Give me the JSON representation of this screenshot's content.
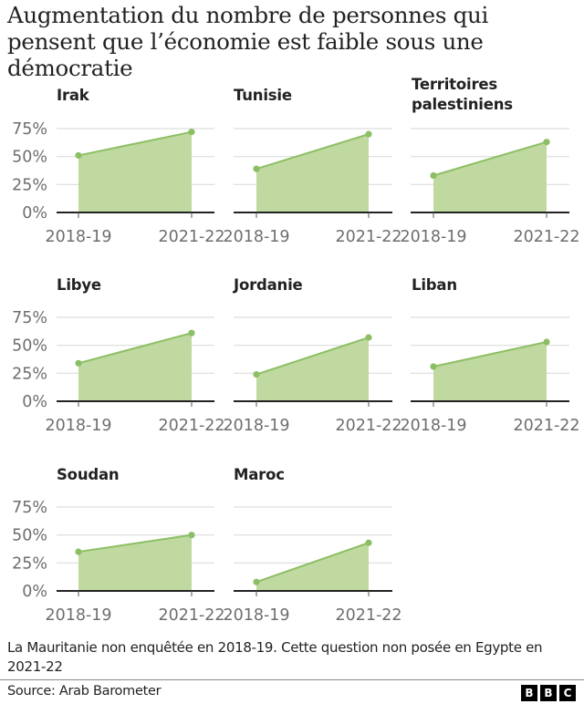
{
  "title": "Augmentation du nombre de personnes qui pensent que l’économie est faible sous une démocratie",
  "colors": {
    "fill": "#c0d9a0",
    "line": "#8cbf64",
    "dot": "#8cbf64",
    "grid": "#dddddd",
    "axis": "#222222",
    "tick_text": "#6e6e6e"
  },
  "y_ticks": [
    "0%",
    "25%",
    "50%",
    "75%"
  ],
  "x_ticks": [
    "2018-19",
    "2021-22"
  ],
  "panels": [
    {
      "title": "Irak",
      "values": [
        51,
        72
      ],
      "show_y": true
    },
    {
      "title": "Tunisie",
      "values": [
        39,
        70
      ],
      "show_y": false
    },
    {
      "title": "Territoires palestiniens",
      "title_line1": "Territoires",
      "title_line2": "palestiniens",
      "values": [
        33,
        63
      ],
      "show_y": false
    },
    {
      "title": "Libye",
      "values": [
        34,
        61
      ],
      "show_y": true
    },
    {
      "title": "Jordanie",
      "values": [
        24,
        57
      ],
      "show_y": false
    },
    {
      "title": "Liban",
      "values": [
        31,
        53
      ],
      "show_y": false
    },
    {
      "title": "Soudan",
      "values": [
        35,
        50
      ],
      "show_y": true
    },
    {
      "title": "Maroc",
      "values": [
        8,
        43
      ],
      "show_y": false
    }
  ],
  "note": "La Mauritanie non enquêtée en 2018-19. Cette question non posée en Egypte en 2021-22",
  "source": "Source: Arab Barometer",
  "logo": [
    "B",
    "B",
    "C"
  ],
  "chart_data": {
    "type": "area",
    "title": "Augmentation du nombre de personnes qui pensent que l’économie est faible sous une démocratie",
    "categories": [
      "2018-19",
      "2021-22"
    ],
    "xlabel": "",
    "ylabel": "",
    "ylim": [
      0,
      75
    ],
    "y_ticks": [
      0,
      25,
      50,
      75
    ],
    "y_tick_labels": [
      "0%",
      "25%",
      "50%",
      "75%"
    ],
    "grid": true,
    "layout": "small multiples, 3 columns",
    "series": [
      {
        "name": "Irak",
        "values": [
          51,
          72
        ]
      },
      {
        "name": "Tunisie",
        "values": [
          39,
          70
        ]
      },
      {
        "name": "Territoires palestiniens",
        "values": [
          33,
          63
        ]
      },
      {
        "name": "Libye",
        "values": [
          34,
          61
        ]
      },
      {
        "name": "Jordanie",
        "values": [
          24,
          57
        ]
      },
      {
        "name": "Liban",
        "values": [
          31,
          53
        ]
      },
      {
        "name": "Soudan",
        "values": [
          35,
          50
        ]
      },
      {
        "name": "Maroc",
        "values": [
          8,
          43
        ]
      }
    ],
    "annotations": [
      "La Mauritanie non enquêtée en 2018-19. Cette question non posée en Egypte en 2021-22",
      "Source: Arab Barometer"
    ]
  }
}
